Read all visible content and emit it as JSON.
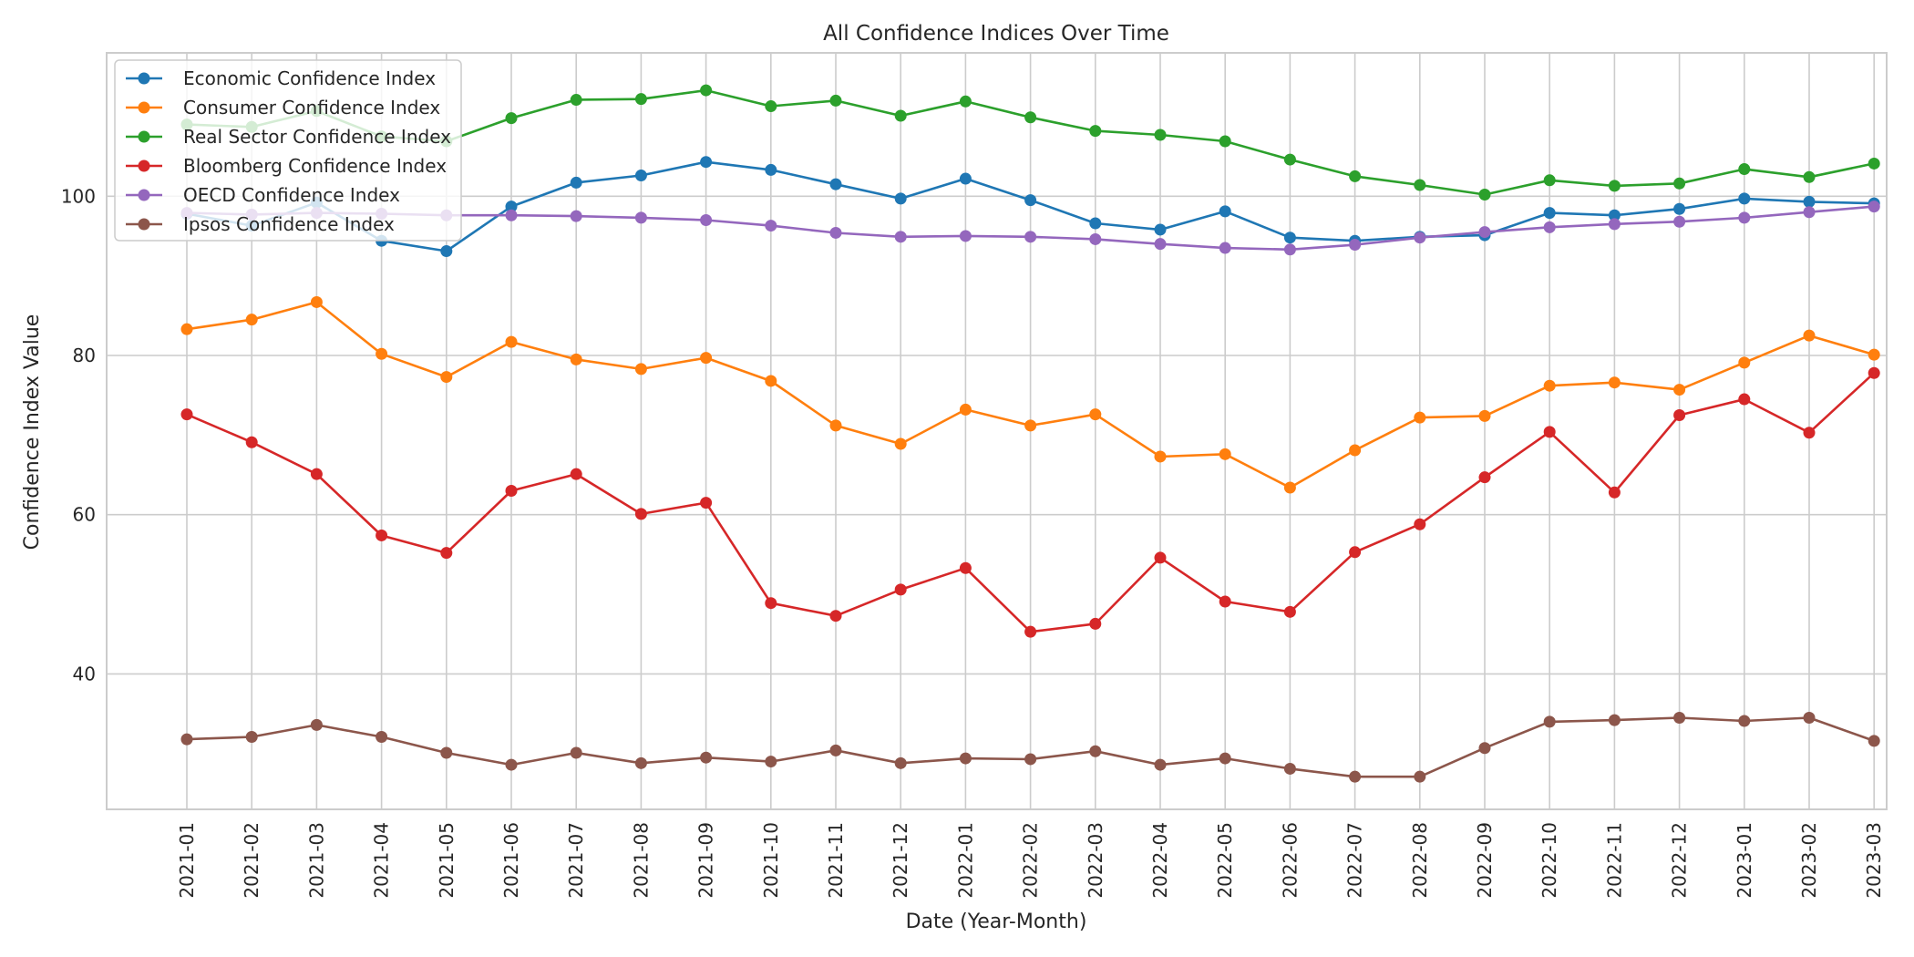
{
  "chart_data": {
    "type": "line",
    "title": "All Confidence Indices Over Time",
    "xlabel": "Date (Year-Month)",
    "ylabel": "Confidence Index Value",
    "ylim": [
      23,
      118
    ],
    "yticks": [
      40,
      60,
      80,
      100
    ],
    "grid": true,
    "legend_position": "top-left",
    "categories": [
      "2021-01",
      "2021-02",
      "2021-03",
      "2021-04",
      "2021-05",
      "2021-06",
      "2021-07",
      "2021-08",
      "2021-09",
      "2021-10",
      "2021-11",
      "2021-12",
      "2022-01",
      "2022-02",
      "2022-03",
      "2022-04",
      "2022-05",
      "2022-06",
      "2022-07",
      "2022-08",
      "2022-09",
      "2022-10",
      "2022-11",
      "2022-12",
      "2023-01",
      "2023-02",
      "2023-03"
    ],
    "series": [
      {
        "name": "Economic Confidence Index",
        "color": "#1f77b4",
        "values": [
          97.8,
          96.3,
          99.2,
          94.4,
          93.1,
          98.7,
          101.7,
          102.6,
          104.3,
          103.3,
          101.5,
          99.7,
          102.2,
          99.5,
          96.6,
          95.8,
          98.1,
          94.8,
          94.4,
          94.9,
          95.1,
          97.9,
          97.6,
          98.4,
          99.7,
          99.3,
          99.1
        ]
      },
      {
        "name": "Consumer Confidence Index",
        "color": "#ff7f0e",
        "values": [
          83.3,
          84.5,
          86.7,
          80.2,
          77.3,
          81.7,
          79.5,
          78.3,
          79.7,
          76.8,
          71.2,
          68.9,
          73.2,
          71.2,
          72.6,
          67.3,
          67.6,
          63.4,
          68.1,
          72.2,
          72.4,
          76.2,
          76.6,
          75.7,
          79.1,
          82.5,
          80.1
        ]
      },
      {
        "name": "Real Sector Confidence Index",
        "color": "#2ca02c",
        "values": [
          109.0,
          108.7,
          110.7,
          107.5,
          106.9,
          109.8,
          112.1,
          112.2,
          113.3,
          111.3,
          112.0,
          110.1,
          111.9,
          109.9,
          108.2,
          107.7,
          106.9,
          104.6,
          102.5,
          101.4,
          100.2,
          102.0,
          101.3,
          101.6,
          103.4,
          102.4,
          104.1
        ]
      },
      {
        "name": "Bloomberg Confidence Index",
        "color": "#d62728",
        "values": [
          72.6,
          69.1,
          65.1,
          57.4,
          55.2,
          63.0,
          65.1,
          60.1,
          61.5,
          48.9,
          47.3,
          50.6,
          53.3,
          45.3,
          46.3,
          54.6,
          49.1,
          47.8,
          55.3,
          58.8,
          64.7,
          70.4,
          62.8,
          72.5,
          74.5,
          70.3,
          77.8
        ]
      },
      {
        "name": "OECD Confidence Index",
        "color": "#9467bd",
        "values": [
          97.9,
          97.7,
          97.9,
          97.8,
          97.6,
          97.6,
          97.5,
          97.3,
          97.0,
          96.3,
          95.4,
          94.9,
          95.0,
          94.9,
          94.6,
          94.0,
          93.5,
          93.3,
          93.9,
          94.8,
          95.5,
          96.1,
          96.5,
          96.8,
          97.3,
          98.0,
          98.7
        ]
      },
      {
        "name": "Ipsos Confidence Index",
        "color": "#8c564b",
        "values": [
          31.8,
          32.1,
          33.6,
          32.1,
          30.1,
          28.6,
          30.1,
          28.8,
          29.5,
          29.0,
          30.4,
          28.8,
          29.4,
          29.3,
          30.3,
          28.6,
          29.4,
          28.1,
          27.1,
          27.1,
          30.7,
          34.0,
          34.2,
          34.5,
          34.1,
          34.5,
          31.6
        ]
      }
    ]
  }
}
